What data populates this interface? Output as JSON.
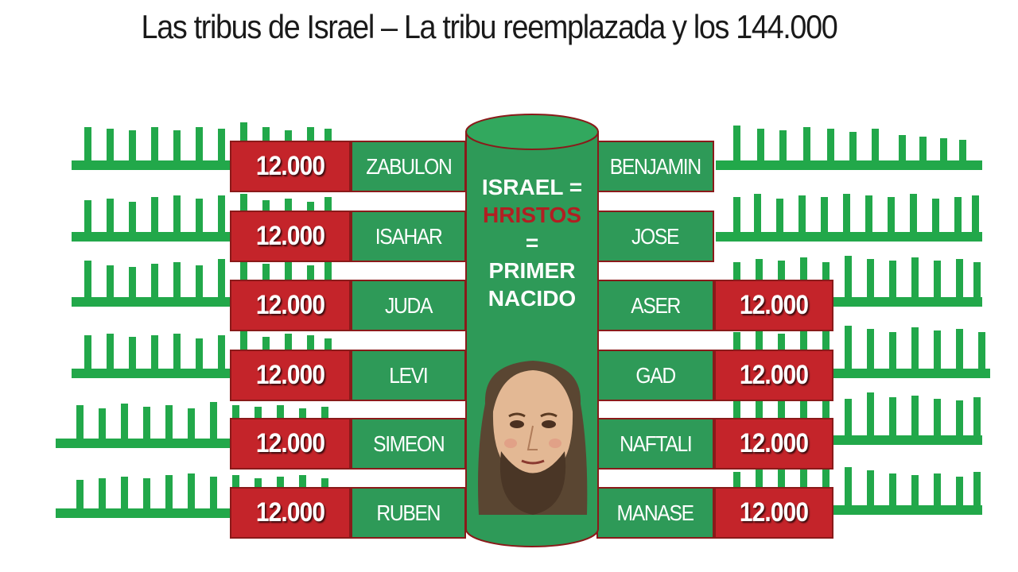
{
  "title": "Las tribus de Israel – La tribu reemplazada y los 144.000",
  "center": {
    "line1": "ISRAEL =",
    "line2": "HRISTOS",
    "line3": "=",
    "line4": "PRIMER",
    "line5": "NACIDO"
  },
  "left_rows": [
    {
      "count": "12.000",
      "tribe": "ZABULON"
    },
    {
      "count": "12.000",
      "tribe": "ISAHAR"
    },
    {
      "count": "12.000",
      "tribe": "JUDA"
    },
    {
      "count": "12.000",
      "tribe": "LEVI"
    },
    {
      "count": "12.000",
      "tribe": "SIMEON"
    },
    {
      "count": "12.000",
      "tribe": "RUBEN"
    }
  ],
  "right_rows": [
    {
      "tribe": "BENJAMIN",
      "count": ""
    },
    {
      "tribe": "JOSE",
      "count": ""
    },
    {
      "tribe": "ASER",
      "count": "12.000"
    },
    {
      "tribe": "GAD",
      "count": "12.000"
    },
    {
      "tribe": "NAFTALI",
      "count": "12.000"
    },
    {
      "tribe": "MANASE",
      "count": "12.000"
    }
  ],
  "colors": {
    "green": "#2e9a58",
    "comb_green": "#22a84a",
    "red": "#c4242a",
    "hristos": "#b11f22"
  }
}
